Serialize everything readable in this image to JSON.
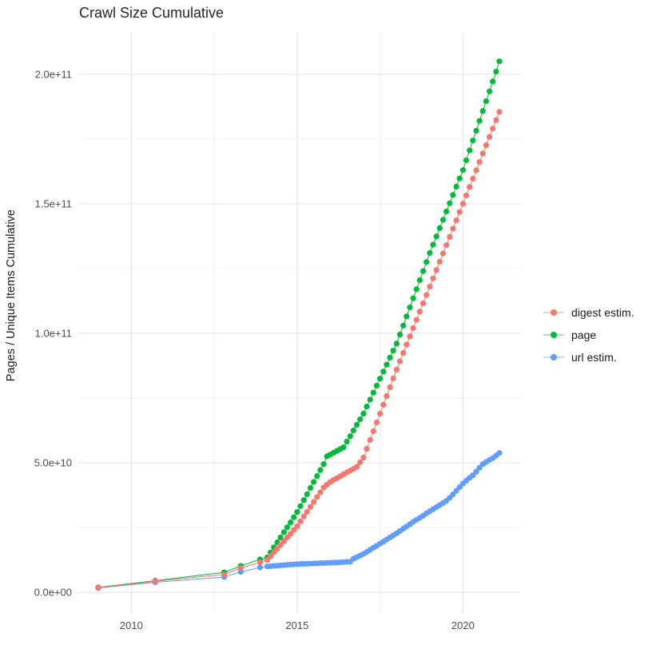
{
  "chart": {
    "title": "Crawl Size Cumulative",
    "y_axis_title": "Pages / Unique Items Cumulative"
  },
  "legend": {
    "position": "right",
    "items": [
      {
        "label": "digest estim.",
        "color": "#F8766D"
      },
      {
        "label": "page",
        "color": "#00BA38"
      },
      {
        "label": "url estim.",
        "color": "#619CFF"
      }
    ]
  },
  "chart_data": {
    "type": "scatter",
    "title": "Crawl Size Cumulative",
    "xlabel": "",
    "ylabel": "Pages / Unique Items Cumulative",
    "grid": true,
    "legend_position": "right",
    "xlim": [
      2008.4,
      2021.75
    ],
    "ylim_billions": [
      -8.3,
      216
    ],
    "x_ticks": [
      {
        "value": 2010,
        "label": "2010"
      },
      {
        "value": 2015,
        "label": "2015"
      },
      {
        "value": 2020,
        "label": "2020"
      }
    ],
    "x_minor": [
      2012.5,
      2017.5
    ],
    "y_ticks": [
      {
        "value_billions": 0,
        "label": "0.0e+00"
      },
      {
        "value_billions": 50,
        "label": "5.0e+10"
      },
      {
        "value_billions": 100,
        "label": "1.0e+11"
      },
      {
        "value_billions": 150,
        "label": "1.5e+11"
      },
      {
        "value_billions": 200,
        "label": "2.0e+11"
      }
    ],
    "y_minor_billions": [
      25,
      75,
      125,
      175
    ],
    "value_unit": 1000000000.0,
    "years": [
      2009.0,
      2010.72,
      2012.8,
      2013.3,
      2013.88,
      2014.1,
      2014.2,
      2014.3,
      2014.4,
      2014.5,
      2014.6,
      2014.7,
      2014.8,
      2014.9,
      2015.0,
      2015.1,
      2015.2,
      2015.3,
      2015.4,
      2015.5,
      2015.6,
      2015.7,
      2015.8,
      2015.9,
      2016.0,
      2016.1,
      2016.2,
      2016.3,
      2016.4,
      2016.5,
      2016.6,
      2016.7,
      2016.8,
      2016.9,
      2017.0,
      2017.1,
      2017.2,
      2017.3,
      2017.4,
      2017.5,
      2017.6,
      2017.7,
      2017.8,
      2017.9,
      2018.0,
      2018.1,
      2018.2,
      2018.3,
      2018.4,
      2018.5,
      2018.6,
      2018.7,
      2018.8,
      2018.9,
      2019.0,
      2019.1,
      2019.2,
      2019.3,
      2019.4,
      2019.5,
      2019.6,
      2019.7,
      2019.8,
      2019.9,
      2020.0,
      2020.1,
      2020.2,
      2020.3,
      2020.4,
      2020.5,
      2020.6,
      2020.7,
      2020.8,
      2020.9,
      2021.0,
      2021.1
    ],
    "series": [
      {
        "name": "digest estim.",
        "color": "#F8766D",
        "values_billions": [
          1.8,
          4.3,
          6.9,
          9.4,
          11.6,
          12.5,
          13.9,
          15.4,
          16.8,
          18.3,
          19.7,
          21.2,
          22.6,
          24.1,
          25.5,
          27.4,
          29.3,
          31.1,
          33.0,
          34.9,
          36.8,
          38.6,
          40.5,
          41.6,
          42.6,
          43.4,
          44.1,
          44.8,
          45.6,
          46.3,
          47.0,
          47.7,
          48.5,
          50.2,
          52.0,
          55.4,
          58.8,
          62.2,
          65.6,
          69.0,
          72.4,
          75.8,
          79.2,
          82.6,
          86.0,
          89.2,
          92.4,
          95.6,
          98.8,
          102.0,
          105.2,
          108.4,
          111.6,
          114.8,
          118.0,
          121.2,
          124.4,
          127.6,
          130.8,
          134.0,
          137.2,
          140.4,
          143.6,
          146.8,
          150.0,
          153.2,
          156.5,
          159.7,
          162.9,
          166.1,
          169.4,
          172.6,
          175.8,
          179.0,
          182.3,
          185.5
        ]
      },
      {
        "name": "page",
        "color": "#00BA38",
        "values_billions": [
          1.9,
          4.5,
          7.7,
          10.2,
          12.7,
          13.5,
          15.4,
          17.4,
          19.3,
          21.2,
          23.2,
          25.1,
          27.0,
          29.0,
          31.0,
          33.3,
          35.6,
          37.9,
          40.3,
          42.6,
          44.9,
          47.2,
          49.5,
          52.5,
          53.2,
          53.9,
          54.6,
          55.3,
          56.0,
          58.2,
          60.3,
          62.5,
          64.7,
          66.8,
          69.0,
          71.7,
          74.4,
          77.1,
          79.8,
          82.5,
          85.2,
          87.9,
          90.6,
          93.3,
          96.0,
          99.5,
          103.0,
          106.5,
          110.0,
          113.5,
          117.0,
          120.5,
          124.0,
          127.5,
          131.0,
          134.2,
          137.4,
          140.6,
          143.8,
          147.0,
          150.2,
          153.4,
          156.6,
          159.8,
          163.0,
          166.8,
          170.6,
          174.4,
          178.2,
          182.0,
          185.8,
          189.6,
          193.4,
          197.2,
          201.0,
          205.0
        ]
      },
      {
        "name": "url estim.",
        "color": "#619CFF",
        "values_billions": [
          1.7,
          3.9,
          5.9,
          7.9,
          9.6,
          10.0,
          10.1,
          10.2,
          10.3,
          10.4,
          10.5,
          10.6,
          10.7,
          10.8,
          10.9,
          10.95,
          11.0,
          11.05,
          11.1,
          11.15,
          11.2,
          11.25,
          11.3,
          11.35,
          11.4,
          11.5,
          11.55,
          11.6,
          11.7,
          11.75,
          11.8,
          13.0,
          13.6,
          14.2,
          14.8,
          15.6,
          16.4,
          17.2,
          18.0,
          18.8,
          19.6,
          20.4,
          21.2,
          22.0,
          22.8,
          23.7,
          24.6,
          25.4,
          26.3,
          27.2,
          28.0,
          28.8,
          29.6,
          30.5,
          31.3,
          32.1,
          32.9,
          33.7,
          34.5,
          35.3,
          36.5,
          37.8,
          39.2,
          40.6,
          42.0,
          43.1,
          44.2,
          45.2,
          46.6,
          48.1,
          49.5,
          50.3,
          51.1,
          51.8,
          52.8,
          53.8
        ]
      }
    ]
  }
}
